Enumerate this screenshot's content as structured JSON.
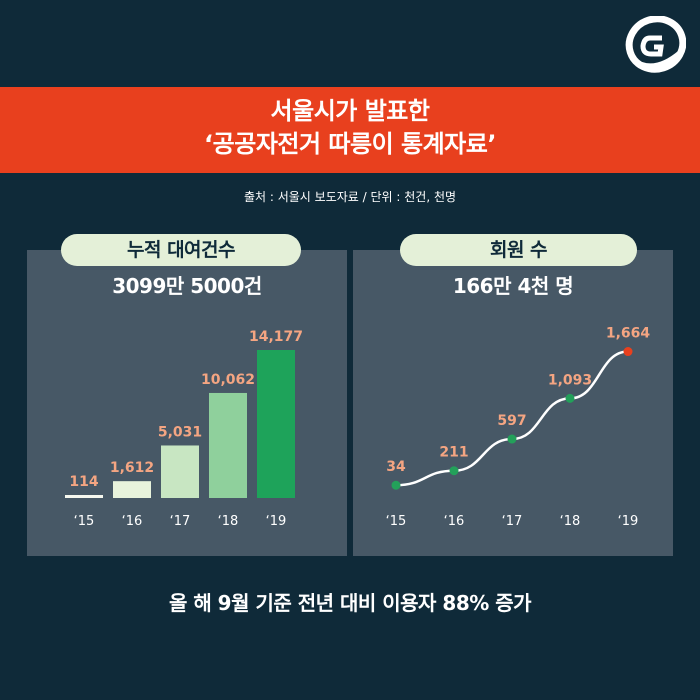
{
  "header": {
    "title_line1": "서울시가 발표한",
    "title_line2": "‘공공자전거 따릉이 통계자료’",
    "source": "출처 : 서울시 보도자료 / 단위 : 천건, 천명"
  },
  "left_panel": {
    "label": "누적 대여건수",
    "total": "3099만 5000건"
  },
  "right_panel": {
    "label": "회원 수",
    "total": "166만 4천 명"
  },
  "footer": {
    "text": "올 해 9월 기준 전년 대비 이용자 88% 증가"
  },
  "colors": {
    "background": "#0f2a39",
    "banner": "#e8401e",
    "panel": "#475866",
    "pill": "#e4f0d8",
    "value_label": "#f4a582",
    "bar_colors": [
      "#f6f8ef",
      "#e8f3dc",
      "#c8e6c2",
      "#8fd09c",
      "#1ea35a"
    ],
    "line": "#ffffff",
    "point": "#23a05a",
    "point_last": "#e8401e"
  },
  "chart_data": [
    {
      "type": "bar",
      "categories": [
        "‘15",
        "‘16",
        "‘17",
        "‘18",
        "‘19"
      ],
      "values": [
        114,
        1612,
        5031,
        10062,
        14177
      ],
      "value_labels": [
        "114",
        "1,612",
        "5,031",
        "10,062",
        "14,177"
      ],
      "ylim": [
        0,
        14177
      ]
    },
    {
      "type": "line",
      "categories": [
        "‘15",
        "‘16",
        "‘17",
        "‘18",
        "‘19"
      ],
      "values": [
        34,
        211,
        597,
        1093,
        1664
      ],
      "value_labels": [
        "34",
        "211",
        "597",
        "1,093",
        "1,664"
      ],
      "ylim": [
        0,
        1664
      ]
    }
  ]
}
